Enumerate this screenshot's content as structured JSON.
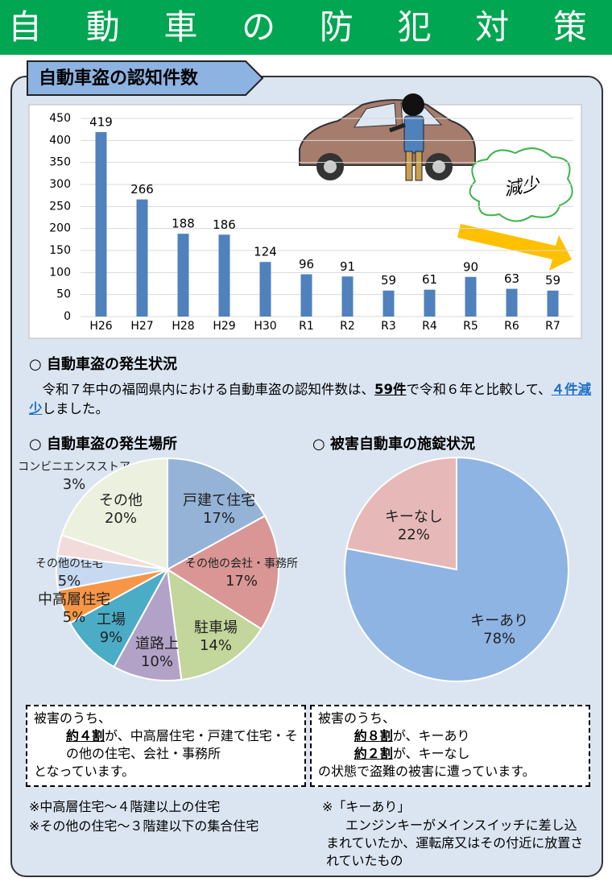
{
  "header": {
    "title": "自動車の防犯対策"
  },
  "chart_data": [
    {
      "type": "bar",
      "title": "自動車盗の認知件数",
      "categories": [
        "H26",
        "H27",
        "H28",
        "H29",
        "H30",
        "R1",
        "R2",
        "R3",
        "R4",
        "R5",
        "R6",
        "R7"
      ],
      "values": [
        419,
        266,
        188,
        186,
        124,
        96,
        91,
        59,
        61,
        90,
        63,
        59
      ],
      "color": "#4f81bd",
      "ylim": [
        0,
        450
      ],
      "yticks": [
        0,
        50,
        100,
        150,
        200,
        250,
        300,
        350,
        400,
        450
      ],
      "annotation": "減少"
    },
    {
      "type": "pie",
      "title": "○ 自動車盗の発生場所",
      "categories": [
        "戸建て住宅",
        "その他の会社・事務所",
        "駐車場",
        "道路上",
        "工場",
        "中高層住宅",
        "その他の住宅",
        "コンビニエンスストア",
        "その他"
      ],
      "values": [
        17,
        17,
        14,
        10,
        9,
        5,
        5,
        3,
        20
      ],
      "value_labels": [
        "17%",
        "17%",
        "14%",
        "10%",
        "9%",
        "5%",
        "5%",
        "3%",
        "20%"
      ],
      "colors": [
        "#95b3d7",
        "#d99694",
        "#c3d69b",
        "#b3a2c7",
        "#4bacc6",
        "#f79646",
        "#c6d9f1",
        "#f2dcdb",
        "#ebf1de"
      ]
    },
    {
      "type": "pie",
      "title": "○ 被害自動車の施錠状況",
      "categories": [
        "キーあり",
        "キーなし"
      ],
      "values": [
        78,
        22
      ],
      "value_labels": [
        "78%",
        "22%"
      ],
      "colors": [
        "#8eb4e3",
        "#e6b9b8"
      ]
    }
  ],
  "status": {
    "heading": "○ 自動車盗の発生状況",
    "paragraph": [
      "令和７年中の福岡県内における自動車盗の認知件数は、",
      "59件",
      "で令和６年と比較して、",
      "４件減少",
      "しました。"
    ]
  },
  "boxes": [
    {
      "intro": "被害のうち、",
      "emphasis": "約４割",
      "text": "が、中高層住宅・戸建て住宅・その他の住宅、会社・事務所",
      "outro": "となっています。"
    },
    {
      "intro": "被害のうち、",
      "lines": [
        [
          "約８割",
          "が、キーあり"
        ],
        [
          "約２割",
          "が、キーなし"
        ]
      ],
      "outro": "の状態で盗難の被害に遭っています。"
    }
  ],
  "notes": {
    "left": [
      "※中高層住宅～４階建以上の住宅",
      "※その他の住宅～３階建以下の集合住宅"
    ],
    "right": {
      "title": "※「キーあり」",
      "text": "エンジンキーがメインスイッチに差し込まれていたか、運転席又はその付近に放置されていたもの"
    }
  }
}
